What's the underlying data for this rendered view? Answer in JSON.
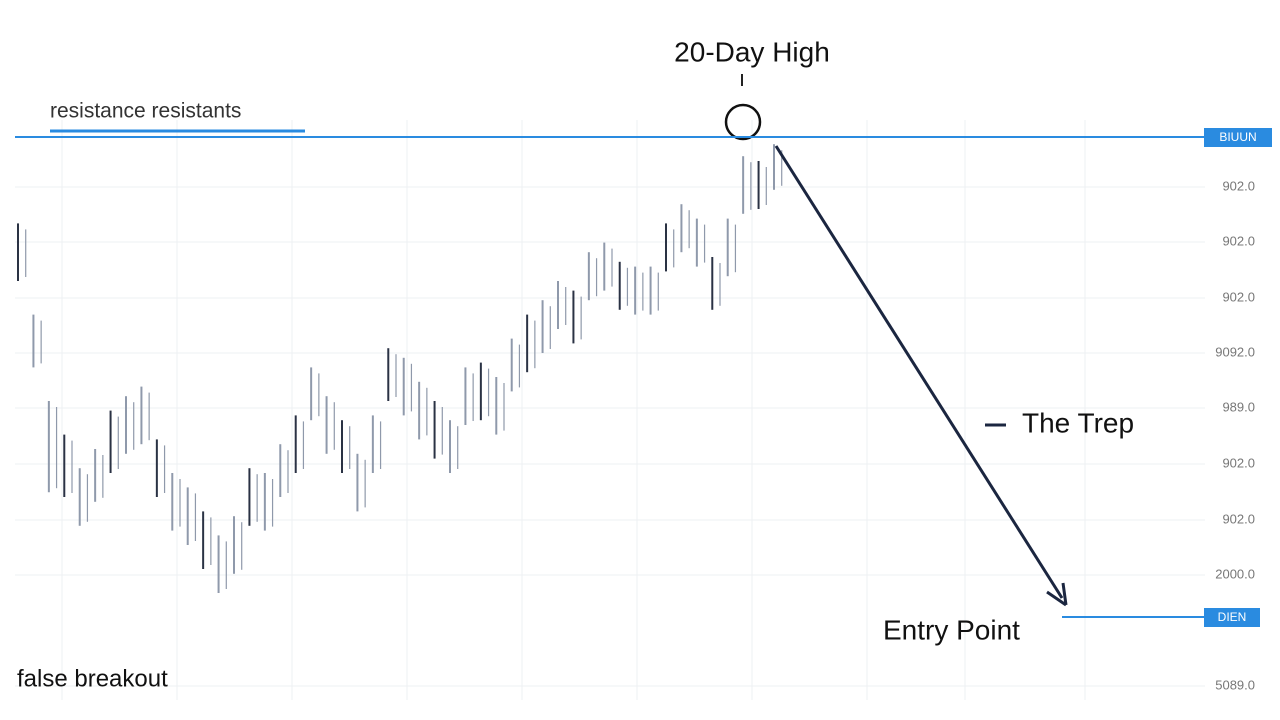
{
  "chart_data": {
    "type": "candlestick",
    "title": "20-Day High",
    "resistance_label": "resistance resistants",
    "annotation_trap": "The Trep",
    "annotation_entry": "Entry Point",
    "annotation_breakout": "false breakout",
    "top_level_label": "BIUUN",
    "bottom_level_label": "DIEN",
    "y_labels": [
      "902.0",
      "902.0",
      "902.0",
      "9092.0",
      "989.0",
      "902.0",
      "902.0",
      "2000.0",
      "5089.0"
    ],
    "ylim": [
      0,
      100
    ],
    "high": [
      82,
      63,
      45,
      38,
      31,
      35,
      43,
      46,
      48,
      37,
      30,
      27,
      22,
      17,
      21,
      31,
      30,
      36,
      42,
      52,
      46,
      41,
      34,
      42,
      56,
      54,
      49,
      45,
      41,
      52,
      53,
      50,
      58,
      63,
      66,
      70,
      68,
      76,
      78,
      74,
      73,
      73,
      82,
      86,
      83,
      75,
      83,
      96,
      95,
      98.5
    ],
    "low": [
      70,
      52,
      26,
      25,
      19,
      24,
      30,
      34,
      36,
      25,
      18,
      15,
      10,
      5,
      9,
      19,
      18,
      25,
      30,
      41,
      34,
      30,
      22,
      30,
      45,
      42,
      37,
      33,
      30,
      40,
      41,
      38,
      47,
      51,
      55,
      60,
      57,
      66,
      68,
      64,
      63,
      63,
      72,
      76,
      73,
      64,
      71,
      84,
      85,
      89
    ],
    "color": "#8f99ab",
    "level_color": "#2a8be0",
    "arrow_color": "#1b2640"
  }
}
